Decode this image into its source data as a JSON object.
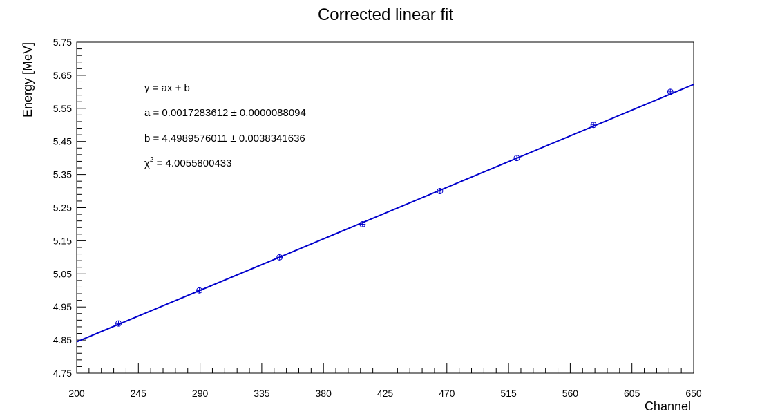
{
  "chart_data": {
    "type": "scatter",
    "title": "Corrected linear fit",
    "xlabel": "Channel",
    "ylabel": "Energy [MeV]",
    "xlim": [
      200,
      650
    ],
    "ylim": [
      4.75,
      5.75
    ],
    "x_ticks": [
      "200",
      "245",
      "290",
      "335",
      "380",
      "425",
      "470",
      "515",
      "560",
      "605",
      "650"
    ],
    "y_ticks": [
      "4.75",
      "4.85",
      "4.95",
      "5.05",
      "5.15",
      "5.25",
      "5.35",
      "5.45",
      "5.55",
      "5.65",
      "5.75"
    ],
    "grid": false,
    "series": [
      {
        "color": "#0000cc",
        "marker": "open-circle",
        "x": [
          230.5,
          289.5,
          348.0,
          408.5,
          465.0,
          521.0,
          577.0,
          633.0
        ],
        "y": [
          4.9,
          5.0,
          5.1,
          5.2,
          5.3,
          5.4,
          5.5,
          5.6
        ]
      }
    ],
    "fit_line": {
      "color": "#0000cc",
      "slope": 0.0017283612,
      "intercept": 4.4989576011,
      "x_range": [
        200,
        650
      ]
    },
    "annotations": {
      "equation": "y = ax + b",
      "a_line": "a = 0.0017283612 ± 0.0000088094",
      "b_line": "b = 4.4989576011 ± 0.0038341636",
      "chi_symbol": "χ",
      "chi_exponent": "2",
      "chi_value": " = 4.0055800433"
    }
  }
}
